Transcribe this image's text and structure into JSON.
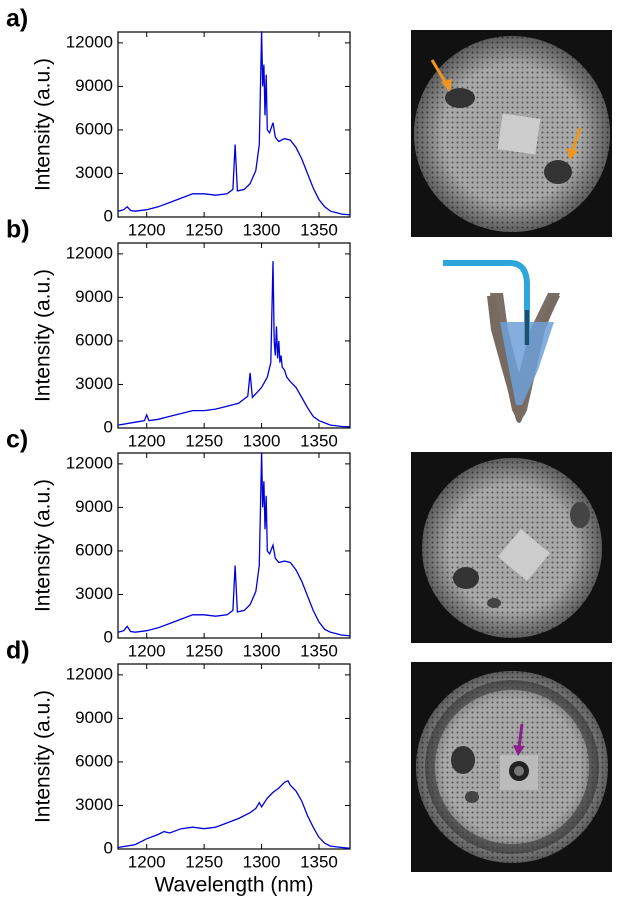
{
  "chart_data": [
    {
      "type": "line",
      "label": "a)",
      "ylabel": "Intensity (a.u.)",
      "xlim": [
        1175,
        1377
      ],
      "ylim": [
        0,
        12750
      ],
      "xticks": [
        1200,
        1250,
        1300,
        1350
      ],
      "yticks": [
        0,
        3000,
        6000,
        9000,
        12000
      ],
      "series": [
        {
          "color": "#0000dd",
          "x": [
            1175,
            1180,
            1183,
            1186,
            1190,
            1200,
            1210,
            1220,
            1230,
            1240,
            1250,
            1260,
            1270,
            1275,
            1277,
            1279,
            1285,
            1290,
            1295,
            1298,
            1300,
            1301,
            1302,
            1303,
            1304,
            1305,
            1307,
            1310,
            1312,
            1315,
            1320,
            1325,
            1330,
            1335,
            1340,
            1345,
            1350,
            1355,
            1360,
            1365,
            1370,
            1377
          ],
          "values": [
            400,
            500,
            700,
            450,
            400,
            500,
            700,
            1000,
            1300,
            1600,
            1600,
            1500,
            1600,
            1900,
            5000,
            1800,
            1900,
            2300,
            3200,
            5000,
            12800,
            9000,
            10500,
            7000,
            9800,
            6000,
            5800,
            6500,
            5500,
            5200,
            5400,
            5300,
            4800,
            4000,
            3000,
            2000,
            1200,
            700,
            400,
            300,
            200,
            150
          ]
        }
      ]
    },
    {
      "type": "line",
      "label": "b)",
      "ylabel": "Intensity (a.u.)",
      "xlim": [
        1175,
        1377
      ],
      "ylim": [
        0,
        12750
      ],
      "xticks": [
        1200,
        1250,
        1300,
        1350
      ],
      "yticks": [
        0,
        3000,
        6000,
        9000,
        12000
      ],
      "series": [
        {
          "color": "#0000dd",
          "x": [
            1175,
            1190,
            1198,
            1200,
            1202,
            1210,
            1220,
            1230,
            1240,
            1250,
            1260,
            1270,
            1280,
            1288,
            1290,
            1292,
            1300,
            1305,
            1308,
            1310,
            1311,
            1312,
            1313,
            1314,
            1315,
            1316,
            1317,
            1318,
            1320,
            1322,
            1325,
            1330,
            1335,
            1340,
            1345,
            1350,
            1360,
            1370,
            1377
          ],
          "values": [
            200,
            400,
            500,
            900,
            500,
            600,
            800,
            1000,
            1200,
            1200,
            1300,
            1500,
            1700,
            2200,
            3800,
            2100,
            2800,
            3500,
            4500,
            11500,
            6000,
            5000,
            7000,
            4800,
            6000,
            4500,
            5000,
            4200,
            4000,
            3500,
            3200,
            2800,
            2100,
            1400,
            800,
            500,
            200,
            100,
            80
          ]
        }
      ]
    },
    {
      "type": "line",
      "label": "c)",
      "ylabel": "Intensity (a.u.)",
      "xlim": [
        1175,
        1377
      ],
      "ylim": [
        0,
        12750
      ],
      "xticks": [
        1200,
        1250,
        1300,
        1350
      ],
      "yticks": [
        0,
        3000,
        6000,
        9000,
        12000
      ],
      "series": [
        {
          "color": "#0000dd",
          "x": [
            1175,
            1180,
            1183,
            1186,
            1190,
            1200,
            1210,
            1220,
            1230,
            1240,
            1250,
            1260,
            1270,
            1275,
            1277,
            1279,
            1285,
            1290,
            1295,
            1298,
            1300,
            1301,
            1302,
            1303,
            1304,
            1305,
            1307,
            1310,
            1312,
            1315,
            1320,
            1325,
            1330,
            1335,
            1340,
            1345,
            1350,
            1355,
            1360,
            1365,
            1370,
            1377
          ],
          "values": [
            400,
            500,
            800,
            450,
            400,
            500,
            700,
            1000,
            1300,
            1600,
            1600,
            1500,
            1600,
            1900,
            5000,
            1800,
            1900,
            2300,
            3200,
            5000,
            12800,
            9000,
            10800,
            7500,
            9800,
            6000,
            5800,
            6400,
            5500,
            5200,
            5300,
            5200,
            4700,
            3900,
            2900,
            1900,
            1100,
            600,
            400,
            300,
            200,
            150
          ]
        }
      ]
    },
    {
      "type": "line",
      "label": "d)",
      "ylabel": "Intensity (a.u.)",
      "xlabel": "Wavelength (nm)",
      "xlim": [
        1175,
        1377
      ],
      "ylim": [
        0,
        12750
      ],
      "xticks": [
        1200,
        1250,
        1300,
        1350
      ],
      "yticks": [
        0,
        3000,
        6000,
        9000,
        12000
      ],
      "series": [
        {
          "color": "#0000dd",
          "x": [
            1175,
            1190,
            1200,
            1210,
            1215,
            1220,
            1230,
            1240,
            1250,
            1260,
            1270,
            1280,
            1290,
            1295,
            1298,
            1300,
            1305,
            1310,
            1315,
            1320,
            1323,
            1325,
            1330,
            1335,
            1340,
            1345,
            1350,
            1355,
            1360,
            1370,
            1377
          ],
          "values": [
            100,
            300,
            700,
            1000,
            1200,
            1100,
            1400,
            1500,
            1400,
            1500,
            1800,
            2100,
            2500,
            2800,
            3200,
            2900,
            3500,
            3900,
            4200,
            4600,
            4700,
            4400,
            4000,
            3300,
            2300,
            1500,
            800,
            400,
            200,
            100,
            50
          ]
        }
      ]
    }
  ]
}
